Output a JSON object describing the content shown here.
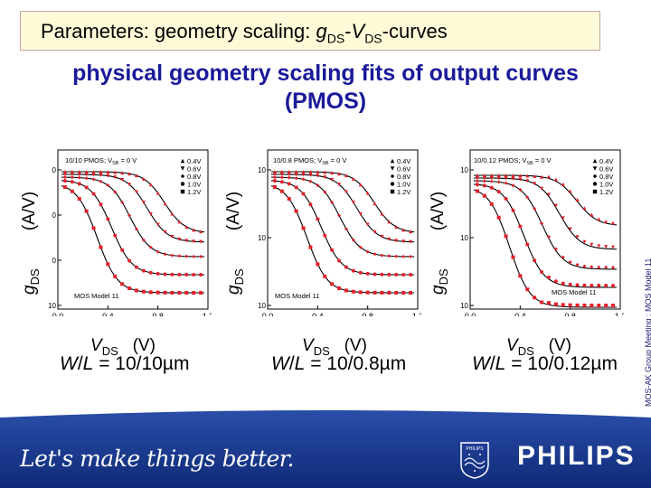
{
  "header": {
    "title_prefix": "Parameters: geometry scaling: ",
    "title_g": "g",
    "title_sub1": "DS",
    "title_dash": "-",
    "title_v": "V",
    "title_sub2": "DS",
    "title_suffix": "-curves"
  },
  "subtitle": {
    "line1": "physical geometry scaling fits of output curves",
    "line2": "(PMOS)"
  },
  "axis_labels": {
    "y_g": "g",
    "y_sub": "DS",
    "y_unit": "(A/V)",
    "x_v": "V",
    "x_sub": "DS",
    "x_unit": "(V)"
  },
  "panels": [
    {
      "plot_title": "10/10 PMOS; V",
      "plot_title_sub": "SB",
      "plot_title_end": " = 0 V",
      "legend": [
        "0.4V",
        "0.6V",
        "0.8V",
        "1.0V",
        "1.2V"
      ],
      "x_ticks": [
        "0.0",
        "0.4",
        "0.8",
        "1.2"
      ],
      "y_ticks": [
        "0",
        "0",
        "0",
        "10"
      ],
      "model_label": "MOS Model 11",
      "caption_w": "W",
      "caption_l": "L",
      "caption_val": " = 10/10µm"
    },
    {
      "plot_title": "10/0.8 PMOS; V",
      "plot_title_sub": "SB",
      "plot_title_end": " = 0 V",
      "legend": [
        "0.4V",
        "0.6V",
        "0.8V",
        "1.0V",
        "1.2V"
      ],
      "x_ticks": [
        "0.0",
        "0.4",
        "0.8",
        "1.2"
      ],
      "y_ticks": [
        "10",
        "10",
        "10"
      ],
      "model_label": "MOS Model 11",
      "caption_w": "W",
      "caption_l": "L",
      "caption_val": " = 10/0.8µm"
    },
    {
      "plot_title": "10/0.12 PMOS; V",
      "plot_title_sub": "SB",
      "plot_title_end": " = 0 V",
      "legend": [
        "0.4V",
        "0.6V",
        "0.8V",
        "1.0V",
        "1.2V"
      ],
      "x_ticks": [
        "0.0",
        "0.4",
        "0.8",
        "1.2"
      ],
      "y_ticks": [
        "10",
        "10",
        "10"
      ],
      "model_label": "MOS Model 11",
      "caption_w": "W",
      "caption_l": "L",
      "caption_val": " = 10/0.12µm"
    }
  ],
  "side_note": "MOS-AK Group Meeting : MOS Model 11",
  "footer": {
    "slogan": "Let's make things better.",
    "brand": "PHILIPS",
    "shield_text": "PHILIPS",
    "colors": {
      "band": "#1b3c96",
      "band_dark": "#0f2a78",
      "title_bg": "#fffbd8",
      "subtitle": "#1a1a9a",
      "data_red": "#e0202a"
    }
  }
}
